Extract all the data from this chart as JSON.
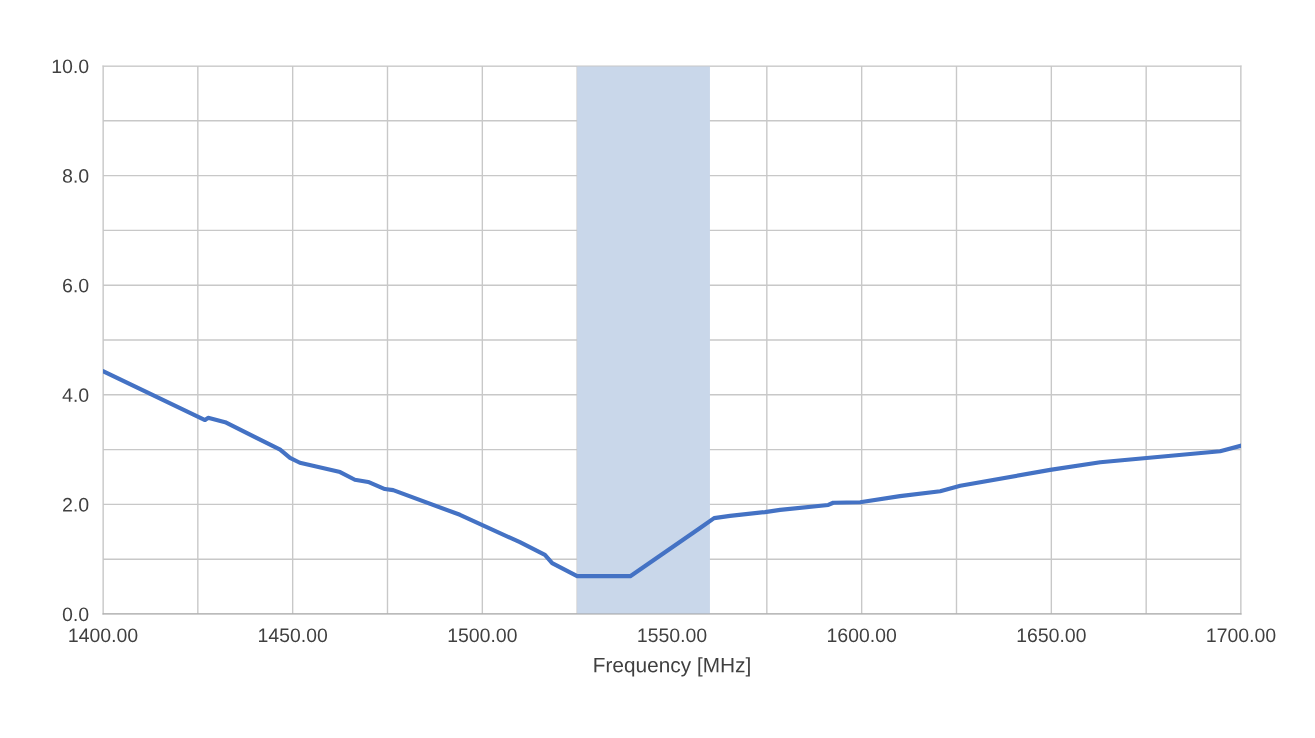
{
  "chart_data": {
    "type": "line",
    "xlabel": "Frequency [MHz]",
    "x": [
      1400,
      1426.9,
      1427.7,
      1432.2,
      1446.7,
      1449.3,
      1451.9,
      1462.5,
      1466.4,
      1469.9,
      1474.3,
      1476.5,
      1494.1,
      1509.9,
      1516.5,
      1518.4,
      1525,
      1539,
      1557.4,
      1561.1,
      1565.3,
      1574.5,
      1578.5,
      1591.2,
      1592.5,
      1599.6,
      1610.1,
      1620.7,
      1626,
      1649.7,
      1662.9,
      1694.5,
      1700
    ],
    "series": [
      {
        "color": "#4472c4",
        "values": [
          4.43,
          3.54,
          3.58,
          3.5,
          3.0,
          2.85,
          2.76,
          2.59,
          2.45,
          2.41,
          2.28,
          2.26,
          1.81,
          1.31,
          1.08,
          0.93,
          0.69,
          0.69,
          1.57,
          1.75,
          1.79,
          1.86,
          1.9,
          1.99,
          2.03,
          2.04,
          2.15,
          2.24,
          2.34,
          2.63,
          2.77,
          2.97,
          3.07
        ]
      }
    ],
    "xlim": [
      1400,
      1700
    ],
    "xticks": [
      {
        "value": 1400,
        "label": "1400.00"
      },
      {
        "value": 1425,
        "label": null
      },
      {
        "value": 1450,
        "label": "1450.00"
      },
      {
        "value": 1475,
        "label": null
      },
      {
        "value": 1500,
        "label": "1500.00"
      },
      {
        "value": 1525,
        "label": null
      },
      {
        "value": 1550,
        "label": "1550.00"
      },
      {
        "value": 1575,
        "label": null
      },
      {
        "value": 1600,
        "label": "1600.00"
      },
      {
        "value": 1625,
        "label": null
      },
      {
        "value": 1650,
        "label": "1650.00"
      },
      {
        "value": 1675,
        "label": null
      },
      {
        "value": 1700,
        "label": "1700.00"
      }
    ],
    "ylim": [
      0,
      10
    ],
    "yticks": [
      {
        "value": 0,
        "label": "0.0"
      },
      {
        "value": 1,
        "label": null
      },
      {
        "value": 2,
        "label": "2.0"
      },
      {
        "value": 3,
        "label": null
      },
      {
        "value": 4,
        "label": "4.0"
      },
      {
        "value": 5,
        "label": null
      },
      {
        "value": 6,
        "label": "6.0"
      },
      {
        "value": 7,
        "label": null
      },
      {
        "value": 8,
        "label": "8.0"
      },
      {
        "value": 9,
        "label": null
      },
      {
        "value": 10,
        "label": "10.0"
      }
    ],
    "bands": [
      {
        "axis": "x",
        "from": 1525,
        "to": 1560,
        "color": "#c9d7ea"
      }
    ],
    "grid": true,
    "legend": false,
    "marker": "none",
    "line_style": "solid"
  }
}
